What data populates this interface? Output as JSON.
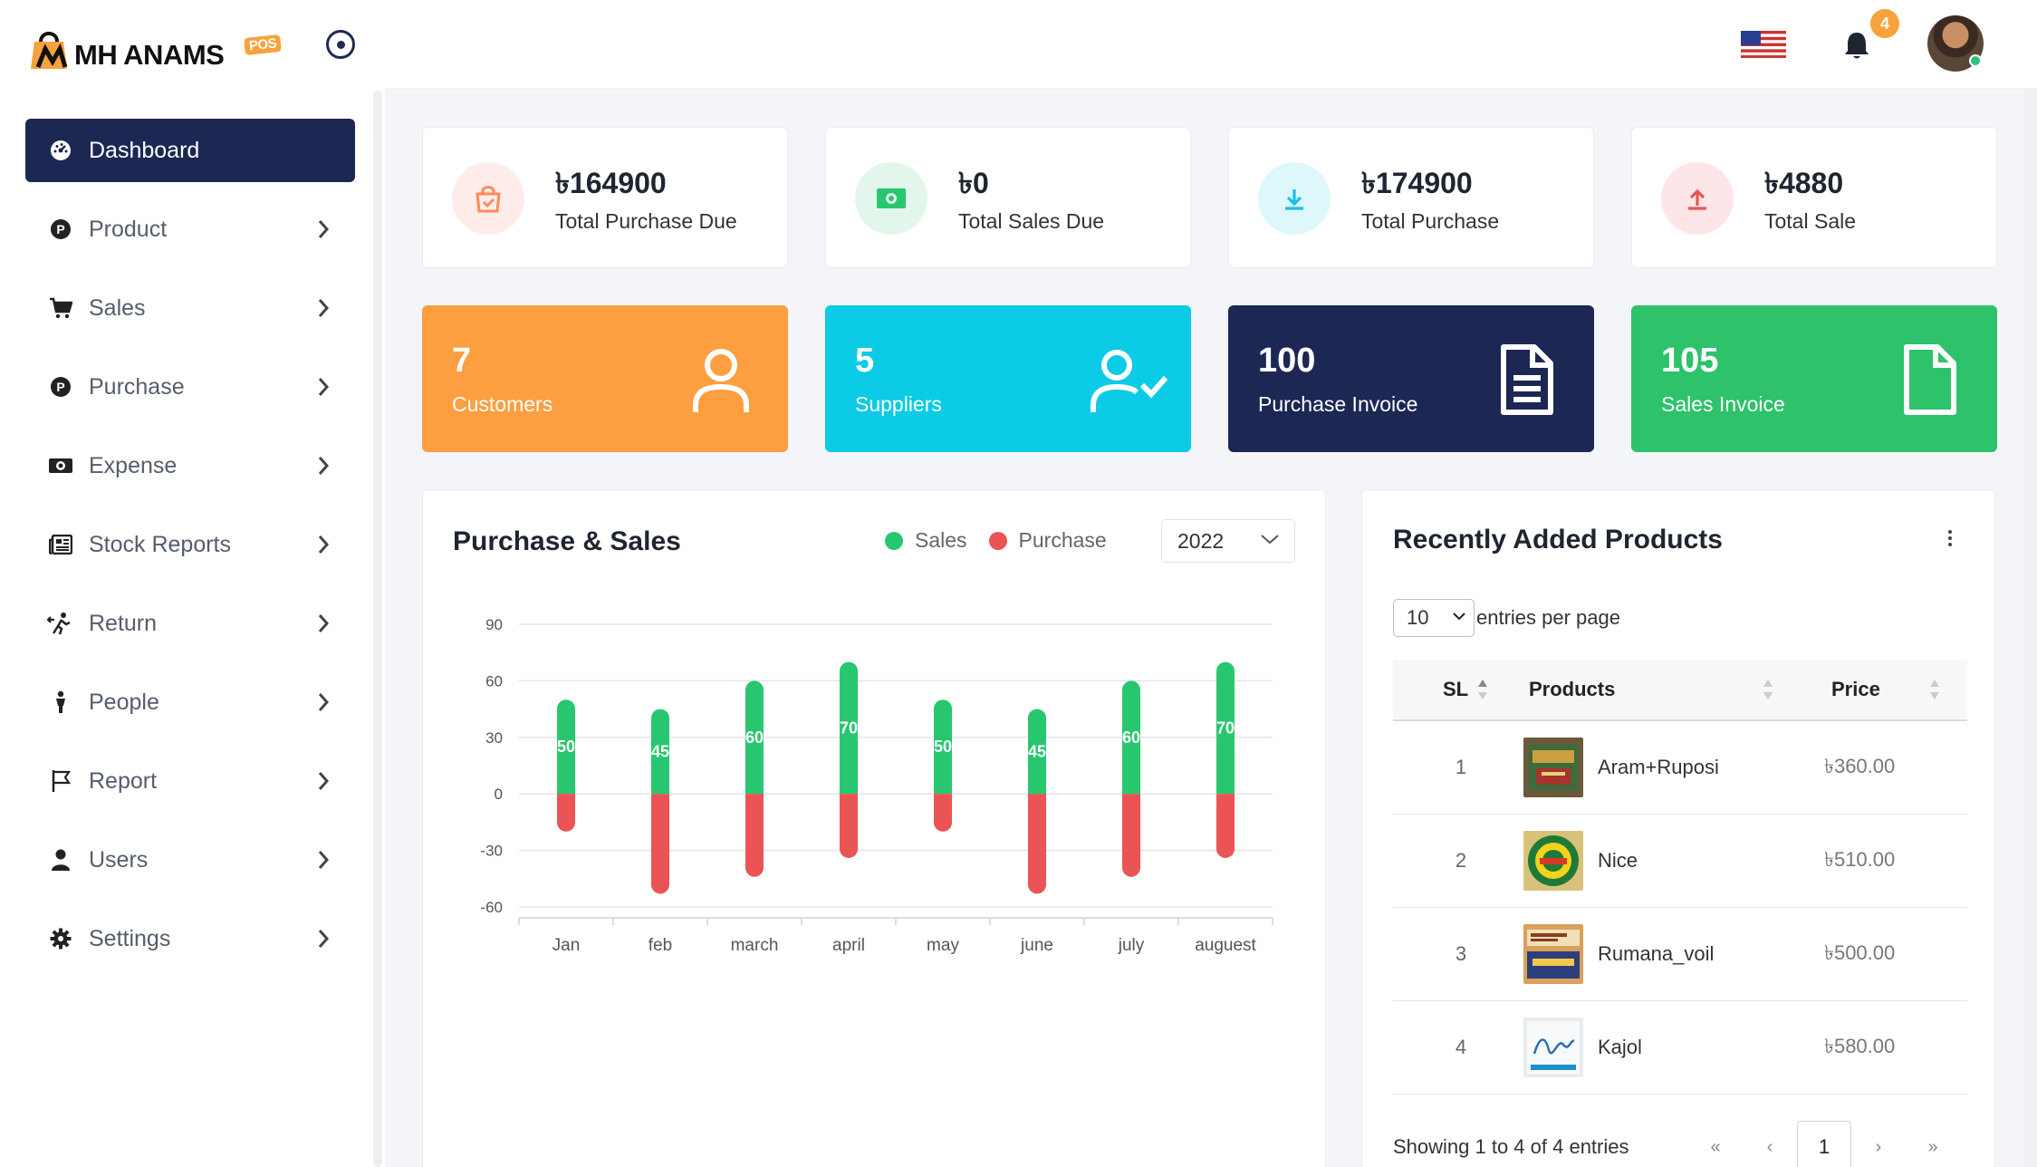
{
  "brand": {
    "name": "MH ANAMS",
    "badge": "POS"
  },
  "sidebar": {
    "items": [
      {
        "label": "Dashboard",
        "icon": "dashboard-icon",
        "active": true
      },
      {
        "label": "Product",
        "icon": "product-icon"
      },
      {
        "label": "Sales",
        "icon": "cart-icon"
      },
      {
        "label": "Purchase",
        "icon": "purchase-icon"
      },
      {
        "label": "Expense",
        "icon": "money-icon"
      },
      {
        "label": "Stock Reports",
        "icon": "newspaper-icon"
      },
      {
        "label": "Return",
        "icon": "return-icon"
      },
      {
        "label": "People",
        "icon": "person-icon"
      },
      {
        "label": "Report",
        "icon": "flag-icon"
      },
      {
        "label": "Users",
        "icon": "user-icon"
      },
      {
        "label": "Settings",
        "icon": "gear-icon"
      }
    ]
  },
  "header": {
    "notification_count": "4",
    "language": "en-US"
  },
  "summary": [
    {
      "amount": "৳164900",
      "label": "Total Purchase Due",
      "icon": "shopping-bag-icon",
      "color": "#fa8c5a",
      "bg": "#fdecea"
    },
    {
      "amount": "৳0",
      "label": "Total Sales Due",
      "icon": "cash-icon",
      "color": "#28c76f",
      "bg": "#e3f6ec"
    },
    {
      "amount": "৳174900",
      "label": "Total Purchase",
      "icon": "download-icon",
      "color": "#17c1e8",
      "bg": "#def7fb"
    },
    {
      "amount": "৳4880",
      "label": "Total Sale",
      "icon": "upload-icon",
      "color": "#ea5455",
      "bg": "#fde6e7"
    }
  ],
  "counts": [
    {
      "value": "7",
      "label": "Customers",
      "color": "#fd9f40",
      "icon": "user-icon"
    },
    {
      "value": "5",
      "label": "Suppliers",
      "color": "#0ccbe6",
      "icon": "user-check-icon"
    },
    {
      "value": "100",
      "label": "Purchase Invoice",
      "color": "#1d2754",
      "icon": "document-icon"
    },
    {
      "value": "105",
      "label": "Sales Invoice",
      "color": "#2ec26a",
      "icon": "file-icon"
    }
  ],
  "chart_card": {
    "title": "Purchase & Sales",
    "legend": {
      "sales": "Sales",
      "purchase": "Purchase"
    },
    "year": "2022"
  },
  "chart_data": {
    "type": "bar",
    "stacked": true,
    "categories": [
      "Jan",
      "feb",
      "march",
      "april",
      "may",
      "june",
      "july",
      "auguest"
    ],
    "series": [
      {
        "name": "Sales",
        "color": "#28c76f",
        "values": [
          50,
          45,
          60,
          70,
          50,
          45,
          60,
          70
        ]
      },
      {
        "name": "Purchase",
        "color": "#ea5455",
        "values": [
          -20,
          -53,
          -44,
          -34,
          -20,
          -53,
          -44,
          -34
        ]
      }
    ],
    "yticks": [
      90,
      60,
      30,
      0,
      -30,
      -60
    ],
    "ylim": [
      -60,
      90
    ],
    "grid": true,
    "data_labels": [
      "50",
      "45",
      "60",
      "70",
      "50",
      "45",
      "60",
      "70"
    ]
  },
  "products": {
    "title": "Recently Added Products",
    "per_page": "10",
    "per_page_label": "entries per page",
    "columns": [
      "SL",
      "Products",
      "Price"
    ],
    "rows": [
      {
        "sl": "1",
        "name": "Aram+Ruposi",
        "price": "৳360.00"
      },
      {
        "sl": "2",
        "name": "Nice",
        "price": "৳510.00"
      },
      {
        "sl": "3",
        "name": "Rumana_voil",
        "price": "৳500.00"
      },
      {
        "sl": "4",
        "name": "Kajol",
        "price": "৳580.00"
      }
    ],
    "showing": "Showing 1 to 4 of 4 entries",
    "pagination": {
      "first": "«",
      "prev": "‹",
      "current": "1",
      "next": "›",
      "last": "»"
    }
  }
}
